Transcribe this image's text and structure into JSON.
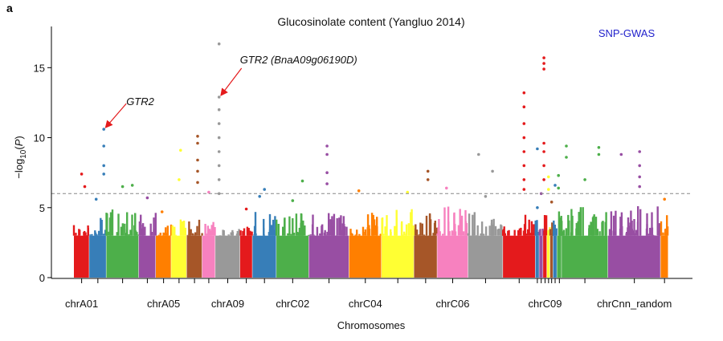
{
  "panel_label": "a",
  "chart_data": {
    "type": "scatter",
    "title": "Glucosinolate content (Yangluo 2014)",
    "method_label": "SNP-GWAS",
    "xlabel": "Chromosomes",
    "ylabel": "-log10(P)",
    "ylim": [
      0,
      18
    ],
    "yticks": [
      0,
      5,
      10,
      15
    ],
    "threshold": 6,
    "x_tick_labels": [
      "chrA01",
      "chrA05",
      "chrA09",
      "chrC02",
      "chrC04",
      "chrC06",
      "chrC09",
      "chrCnn_random"
    ],
    "chromosomes": [
      {
        "name": "chrA01",
        "color": "#e41a1c",
        "base_max": 3.9,
        "peaks": [
          [
            0.5,
            7.4
          ],
          [
            0.7,
            6.5
          ]
        ]
      },
      {
        "name": "chrA02",
        "color": "#377eb8",
        "base_max": 4.5,
        "peaks": [
          [
            0.85,
            10.6
          ],
          [
            0.85,
            9.4
          ],
          [
            0.85,
            8.0
          ],
          [
            0.85,
            7.4
          ],
          [
            0.4,
            5.6
          ]
        ]
      },
      {
        "name": "chrA03",
        "color": "#4daf4a",
        "base_max": 5.0,
        "peaks": [
          [
            0.5,
            6.5
          ],
          [
            0.8,
            6.6
          ]
        ]
      },
      {
        "name": "chrA04",
        "color": "#984ea3",
        "base_max": 4.8,
        "peaks": [
          [
            0.5,
            5.7
          ]
        ]
      },
      {
        "name": "chrA05",
        "color": "#ff7f00",
        "base_max": 3.8,
        "peaks": [
          [
            0.4,
            4.7
          ]
        ]
      },
      {
        "name": "chrA06",
        "color": "#ffff33",
        "base_max": 4.3,
        "peaks": [
          [
            0.6,
            9.1
          ],
          [
            0.5,
            7.0
          ]
        ]
      },
      {
        "name": "chrA07",
        "color": "#a65628",
        "base_max": 4.2,
        "peaks": [
          [
            0.7,
            10.1
          ],
          [
            0.7,
            9.6
          ],
          [
            0.7,
            8.4
          ],
          [
            0.7,
            7.6
          ],
          [
            0.7,
            6.8
          ]
        ]
      },
      {
        "name": "chrA08",
        "color": "#f781bf",
        "base_max": 4.0,
        "peaks": [
          [
            0.5,
            6.1
          ]
        ]
      },
      {
        "name": "chrA09",
        "color": "#999999",
        "base_max": 3.5,
        "peaks": [
          [
            0.15,
            16.7
          ],
          [
            0.15,
            12.9
          ],
          [
            0.15,
            12.0
          ],
          [
            0.15,
            11.0
          ],
          [
            0.15,
            10.0
          ],
          [
            0.15,
            9.0
          ],
          [
            0.15,
            8.0
          ],
          [
            0.15,
            7.0
          ],
          [
            0.15,
            6.0
          ]
        ]
      },
      {
        "name": "chrA10",
        "color": "#e41a1c",
        "base_max": 4.1,
        "peaks": [
          [
            0.5,
            4.9
          ]
        ]
      },
      {
        "name": "chrC01",
        "color": "#377eb8",
        "base_max": 4.9,
        "peaks": [
          [
            0.5,
            6.3
          ],
          [
            0.3,
            5.8
          ]
        ]
      },
      {
        "name": "chrC02",
        "color": "#4daf4a",
        "base_max": 4.7,
        "peaks": [
          [
            0.8,
            6.9
          ],
          [
            0.5,
            5.5
          ]
        ]
      },
      {
        "name": "chrC03",
        "color": "#984ea3",
        "base_max": 5.2,
        "peaks": [
          [
            0.45,
            9.4
          ],
          [
            0.45,
            8.8
          ],
          [
            0.45,
            7.5
          ],
          [
            0.45,
            6.7
          ]
        ]
      },
      {
        "name": "chrC04",
        "color": "#ff7f00",
        "base_max": 4.7,
        "peaks": [
          [
            0.3,
            6.2
          ]
        ]
      },
      {
        "name": "chrC04_random",
        "color": "#ffff33",
        "base_max": 4.9,
        "peaks": [
          [
            0.8,
            6.1
          ]
        ]
      },
      {
        "name": "chrC05",
        "color": "#a65628",
        "base_max": 5.2,
        "peaks": [
          [
            0.6,
            7.6
          ],
          [
            0.6,
            7.0
          ]
        ]
      },
      {
        "name": "chrC06",
        "color": "#f781bf",
        "base_max": 5.2,
        "peaks": [
          [
            0.3,
            6.4
          ]
        ]
      },
      {
        "name": "chrC07",
        "color": "#999999",
        "base_max": 4.8,
        "peaks": [
          [
            0.3,
            8.8
          ],
          [
            0.7,
            7.6
          ],
          [
            0.5,
            5.8
          ]
        ]
      },
      {
        "name": "chrC08",
        "color": "#e41a1c",
        "base_max": 4.6,
        "peaks": [
          [
            0.65,
            13.2
          ],
          [
            0.65,
            12.2
          ],
          [
            0.65,
            11.0
          ],
          [
            0.65,
            10.0
          ],
          [
            0.65,
            9.0
          ],
          [
            0.65,
            8.0
          ],
          [
            0.65,
            7.0
          ],
          [
            0.65,
            6.3
          ]
        ]
      },
      {
        "name": "chrC09_random_1",
        "color": "#377eb8",
        "base_max": 4.6,
        "peaks": [
          [
            0.5,
            9.2
          ],
          [
            0.5,
            5.0
          ]
        ]
      },
      {
        "name": "chrC09_random_2",
        "color": "#984ea3",
        "base_max": 4.4,
        "peaks": [
          [
            0.5,
            6.0
          ]
        ]
      },
      {
        "name": "chrC09",
        "color": "#e41a1c",
        "base_max": 4.6,
        "peaks": [
          [
            0.2,
            15.7
          ],
          [
            0.2,
            15.3
          ],
          [
            0.2,
            14.9
          ],
          [
            0.2,
            9.6
          ],
          [
            0.2,
            9.0
          ],
          [
            0.2,
            8.0
          ],
          [
            0.2,
            7.0
          ]
        ]
      },
      {
        "name": "chrC09_random_3",
        "color": "#ffff33",
        "base_max": 4.2,
        "peaks": [
          [
            0.5,
            7.2
          ],
          [
            0.5,
            6.3
          ]
        ]
      },
      {
        "name": "chrC09_random_4",
        "color": "#a65628",
        "base_max": 4.4,
        "peaks": [
          [
            0.5,
            5.4
          ]
        ]
      },
      {
        "name": "chrC09_random_5",
        "color": "#377eb8",
        "base_max": 4.5,
        "peaks": [
          [
            0.5,
            6.6
          ]
        ]
      },
      {
        "name": "chrC09_random_6",
        "color": "#4daf4a",
        "base_max": 5.0,
        "peaks": [
          [
            0.3,
            7.3
          ],
          [
            0.3,
            6.4
          ]
        ]
      },
      {
        "name": "chrC09_random_7",
        "color": "#4daf4a",
        "base_max": 5.1,
        "peaks": [
          [
            0.1,
            9.4
          ],
          [
            0.1,
            8.6
          ],
          [
            0.8,
            9.3
          ],
          [
            0.8,
            8.8
          ],
          [
            0.5,
            7.0
          ]
        ]
      },
      {
        "name": "chrCnn_random",
        "color": "#984ea3",
        "base_max": 5.2,
        "peaks": [
          [
            0.25,
            8.8
          ],
          [
            0.6,
            9.0
          ],
          [
            0.6,
            8.0
          ],
          [
            0.6,
            7.2
          ],
          [
            0.6,
            6.5
          ]
        ]
      },
      {
        "name": "chrUnn_random",
        "color": "#ff7f00",
        "base_max": 4.5,
        "peaks": [
          [
            0.5,
            5.6
          ]
        ]
      }
    ],
    "annotations": [
      {
        "text": "GTR2",
        "chromosome": "chrA02",
        "y": 10.6
      },
      {
        "text": "GTR2 (BnaA09g06190D)",
        "chromosome": "chrA09",
        "y": 12.9
      }
    ]
  }
}
